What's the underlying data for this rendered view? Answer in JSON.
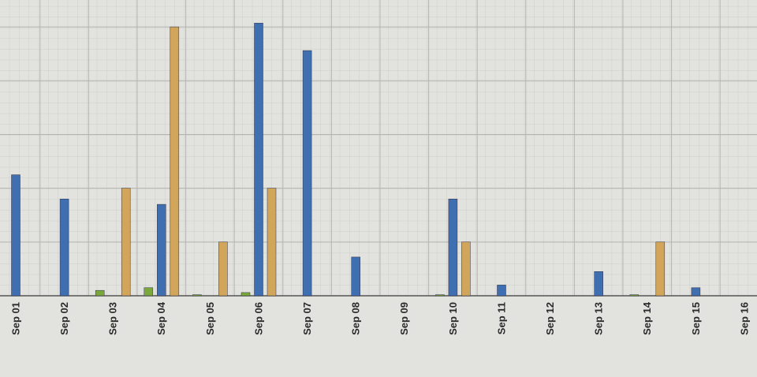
{
  "chart_data": {
    "type": "bar",
    "categories": [
      "Sep 01",
      "Sep 02",
      "Sep 03",
      "Sep 04",
      "Sep 05",
      "Sep 06",
      "Sep 07",
      "Sep 08",
      "Sep 09",
      "Sep 10",
      "Sep 11",
      "Sep 12",
      "Sep 13",
      "Sep 14",
      "Sep 15",
      "Sep 16"
    ],
    "series": [
      {
        "color": "#7aa83a",
        "values": [
          0,
          0,
          0.1,
          0.15,
          0.02,
          0.06,
          0,
          0,
          0,
          0.02,
          0,
          0,
          0,
          0.02,
          0,
          0
        ]
      },
      {
        "color": "#3f6fb0",
        "values": [
          2.25,
          1.8,
          0,
          1.7,
          0,
          5.07,
          4.56,
          0.72,
          0,
          1.8,
          0.2,
          0,
          0.45,
          0,
          0.15,
          0
        ]
      },
      {
        "color": "#d2a65a",
        "values": [
          0,
          0,
          2.0,
          5.0,
          1.0,
          2.0,
          0,
          0,
          0,
          1.0,
          0,
          0,
          0,
          1.0,
          0,
          0
        ]
      }
    ],
    "ylim": [
      0,
      5.5
    ],
    "yticks": [
      0,
      1,
      2,
      3,
      4,
      5
    ],
    "grid": true
  }
}
